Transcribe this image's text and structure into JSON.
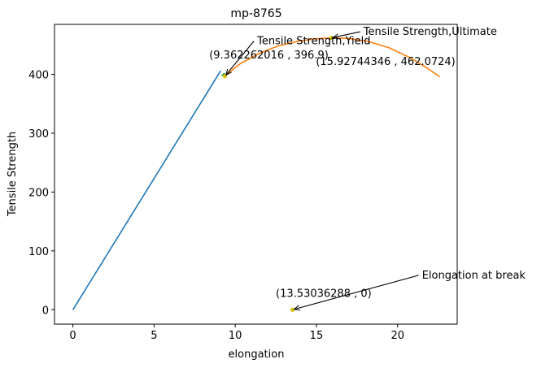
{
  "chart_data": {
    "type": "line",
    "title": "mp-8765",
    "xlabel": "elongation",
    "ylabel": "Tensile Strength",
    "xlim": [
      -1.13,
      23.67
    ],
    "ylim": [
      -24.5,
      485.0
    ],
    "xticks": [
      0,
      5,
      10,
      15,
      20
    ],
    "yticks": [
      0,
      100,
      200,
      300,
      400
    ],
    "grid": false,
    "series": [
      {
        "color": "#1f77b4",
        "points": [
          [
            0,
            0
          ],
          [
            9.1,
            406
          ]
        ]
      },
      {
        "color": "#2ca02c",
        "points": [
          [
            9.15,
            398
          ],
          [
            9.36,
            402
          ]
        ]
      },
      {
        "color": "#ff7f0e",
        "points": [
          [
            9.362262016,
            396.9
          ],
          [
            10.3,
            418
          ],
          [
            11.5,
            436
          ],
          [
            12.7,
            449
          ],
          [
            14.0,
            457
          ],
          [
            15.0,
            460.5
          ],
          [
            15.92744346,
            462.0724
          ],
          [
            17.0,
            461
          ],
          [
            18.2,
            456
          ],
          [
            19.5,
            445
          ],
          [
            20.8,
            428
          ],
          [
            21.8,
            411
          ],
          [
            22.6,
            396
          ]
        ]
      }
    ],
    "markers": [
      {
        "x": 9.362262016,
        "y": 396.9,
        "color": "#d4c200"
      },
      {
        "x": 15.92744346,
        "y": 462.0724,
        "color": "#d4c200"
      },
      {
        "x": 13.53036288,
        "y": 0,
        "color": "#d4c200"
      }
    ],
    "annotations": [
      {
        "name": "ultimate",
        "label": "Tensile Strength,Ultimate",
        "coord_text": "(15.92744346 , 462.0724)",
        "point": [
          15.92744346,
          462.0724
        ],
        "label_pos": [
          17.9,
          467
        ],
        "coord_pos": [
          14.97,
          416
        ]
      },
      {
        "name": "yield",
        "label": "Tensile Strength,Yield",
        "coord_text": "(9.362262016 , 396.9)",
        "point": [
          9.362262016,
          396.9
        ],
        "label_pos": [
          11.35,
          451
        ],
        "coord_pos": [
          8.4,
          427
        ]
      },
      {
        "name": "break",
        "label": "Elongation at break",
        "coord_text": "(13.53036288 , 0)",
        "point": [
          13.53036288,
          0
        ],
        "label_pos": [
          21.5,
          53
        ],
        "coord_pos": [
          12.5,
          22
        ]
      }
    ]
  }
}
